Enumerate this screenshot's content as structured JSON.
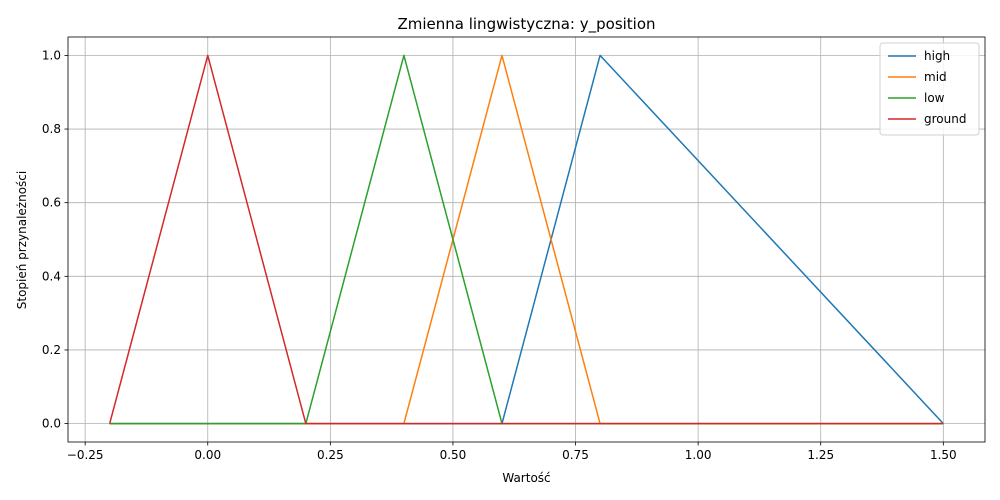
{
  "chart_data": {
    "type": "line",
    "title": "Zmienna lingwistyczna: y_position",
    "xlabel": "Wartość",
    "ylabel": "Stopień przynależności",
    "xlim": [
      -0.285,
      1.585
    ],
    "ylim": [
      -0.05,
      1.05
    ],
    "grid": true,
    "legend_position": "top-right",
    "x_ticks": [
      -0.25,
      0.0,
      0.25,
      0.5,
      0.75,
      1.0,
      1.25,
      1.5
    ],
    "x_tick_labels": [
      "−0.25",
      "0.00",
      "0.25",
      "0.50",
      "0.75",
      "1.00",
      "1.25",
      "1.50"
    ],
    "y_ticks": [
      0.0,
      0.2,
      0.4,
      0.6,
      0.8,
      1.0
    ],
    "y_tick_labels": [
      "0.0",
      "0.2",
      "0.4",
      "0.6",
      "0.8",
      "1.0"
    ],
    "series": [
      {
        "name": "high",
        "color": "#1f77b4",
        "x": [
          -0.2,
          0.6,
          0.8,
          1.5
        ],
        "y": [
          0,
          0,
          1,
          0
        ]
      },
      {
        "name": "mid",
        "color": "#ff7f0e",
        "x": [
          -0.2,
          0.4,
          0.6,
          0.8,
          1.5
        ],
        "y": [
          0,
          0,
          1,
          0,
          0
        ]
      },
      {
        "name": "low",
        "color": "#2ca02c",
        "x": [
          -0.2,
          0.2,
          0.4,
          0.6,
          1.5
        ],
        "y": [
          0,
          0,
          1,
          0,
          0
        ]
      },
      {
        "name": "ground",
        "color": "#d62728",
        "x": [
          -0.2,
          0.0,
          0.2,
          1.5
        ],
        "y": [
          0,
          1,
          0,
          0
        ]
      }
    ]
  }
}
